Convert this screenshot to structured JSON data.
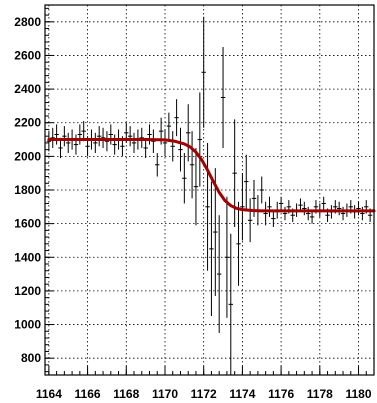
{
  "chart_data": {
    "type": "scatter",
    "title": "",
    "xlabel": "",
    "ylabel": "",
    "xlim": [
      1163.8,
      1180.8
    ],
    "ylim": [
      700,
      2900
    ],
    "grid": true,
    "grid_style": "dotted",
    "x_ticks": [
      1164,
      1166,
      1168,
      1170,
      1172,
      1174,
      1176,
      1178,
      1180
    ],
    "x_tick_labels": [
      "1164",
      "1166",
      "1168",
      "1170",
      "1172",
      "1174",
      "1176",
      "1178",
      "1180"
    ],
    "y_ticks": [
      800,
      1000,
      1200,
      1400,
      1600,
      1800,
      2000,
      2200,
      2400,
      2600,
      2800
    ],
    "y_tick_labels": [
      "800",
      "1000",
      "1200",
      "1400",
      "1600",
      "1800",
      "2000",
      "2200",
      "2400",
      "2600",
      "2800"
    ],
    "colors": {
      "points": "#000000",
      "fit": "#a00000",
      "grid": "#000000"
    },
    "series": [
      {
        "kind": "points_with_error_bars",
        "x": [
          1164.0,
          1164.2,
          1164.4,
          1164.6,
          1164.8,
          1165.0,
          1165.2,
          1165.4,
          1165.6,
          1165.8,
          1166.0,
          1166.2,
          1166.4,
          1166.6,
          1166.8,
          1167.0,
          1167.2,
          1167.4,
          1167.6,
          1167.8,
          1168.0,
          1168.2,
          1168.4,
          1168.6,
          1168.8,
          1169.0,
          1169.2,
          1169.4,
          1169.6,
          1169.8,
          1170.0,
          1170.2,
          1170.4,
          1170.6,
          1170.8,
          1171.0,
          1171.2,
          1171.4,
          1171.6,
          1171.8,
          1172.0,
          1172.2,
          1172.4,
          1172.6,
          1172.8,
          1173.0,
          1173.2,
          1173.4,
          1173.6,
          1173.8,
          1174.0,
          1174.2,
          1174.4,
          1174.6,
          1174.8,
          1175.0,
          1175.2,
          1175.4,
          1175.6,
          1175.8,
          1176.0,
          1176.2,
          1176.4,
          1176.6,
          1176.8,
          1177.0,
          1177.2,
          1177.4,
          1177.6,
          1177.8,
          1178.0,
          1178.2,
          1178.4,
          1178.6,
          1178.8,
          1179.0,
          1179.2,
          1179.4,
          1179.6,
          1179.8,
          1180.0,
          1180.2,
          1180.4,
          1180.6
        ],
        "y": [
          2090,
          2110,
          2130,
          2050,
          2120,
          2080,
          2100,
          2070,
          2130,
          2150,
          2060,
          2100,
          2080,
          2120,
          2110,
          2090,
          2130,
          2070,
          2100,
          2060,
          2140,
          2120,
          2080,
          2100,
          2110,
          2050,
          2130,
          2090,
          1950,
          2150,
          2080,
          2180,
          2060,
          2230,
          2040,
          1870,
          2140,
          1950,
          1820,
          2100,
          2500,
          1700,
          1450,
          1550,
          1300,
          2350,
          1400,
          1120,
          1900,
          1480,
          1700,
          1850,
          1620,
          1750,
          1680,
          1800,
          1660,
          1700,
          1630,
          1680,
          1720,
          1660,
          1700,
          1650,
          1680,
          1710,
          1690,
          1660,
          1640,
          1700,
          1680,
          1720,
          1650,
          1670,
          1700,
          1690,
          1660,
          1680,
          1700,
          1670,
          1690,
          1660,
          1700,
          1650
        ],
        "yerr": [
          60,
          60,
          60,
          60,
          60,
          60,
          60,
          60,
          60,
          60,
          60,
          60,
          60,
          60,
          60,
          60,
          60,
          60,
          60,
          60,
          60,
          60,
          60,
          60,
          60,
          60,
          60,
          70,
          70,
          80,
          80,
          80,
          90,
          110,
          130,
          150,
          170,
          200,
          230,
          280,
          330,
          380,
          400,
          380,
          350,
          300,
          360,
          420,
          320,
          250,
          200,
          160,
          130,
          110,
          90,
          80,
          70,
          60,
          50,
          50,
          40,
          40,
          40,
          40,
          40,
          40,
          40,
          40,
          40,
          40,
          40,
          40,
          40,
          40,
          40,
          40,
          40,
          40,
          40,
          40,
          40,
          40,
          40,
          40
        ]
      },
      {
        "kind": "fit_curve",
        "function": "step",
        "x": [
          1164.0,
          1165.0,
          1166.0,
          1167.0,
          1168.0,
          1169.0,
          1170.0,
          1170.5,
          1171.0,
          1171.3,
          1171.6,
          1171.9,
          1172.2,
          1172.5,
          1172.8,
          1173.1,
          1173.4,
          1173.7,
          1174.0,
          1174.5,
          1175.0,
          1176.0,
          1177.0,
          1178.0,
          1179.0,
          1180.0,
          1180.8
        ],
        "y": [
          2100,
          2100,
          2100,
          2100,
          2100,
          2100,
          2098,
          2090,
          2074,
          2056,
          2025,
          1979,
          1918,
          1850,
          1786,
          1737,
          1707,
          1691,
          1683,
          1678,
          1676,
          1676,
          1676,
          1676,
          1676,
          1676,
          1676
        ]
      }
    ]
  }
}
